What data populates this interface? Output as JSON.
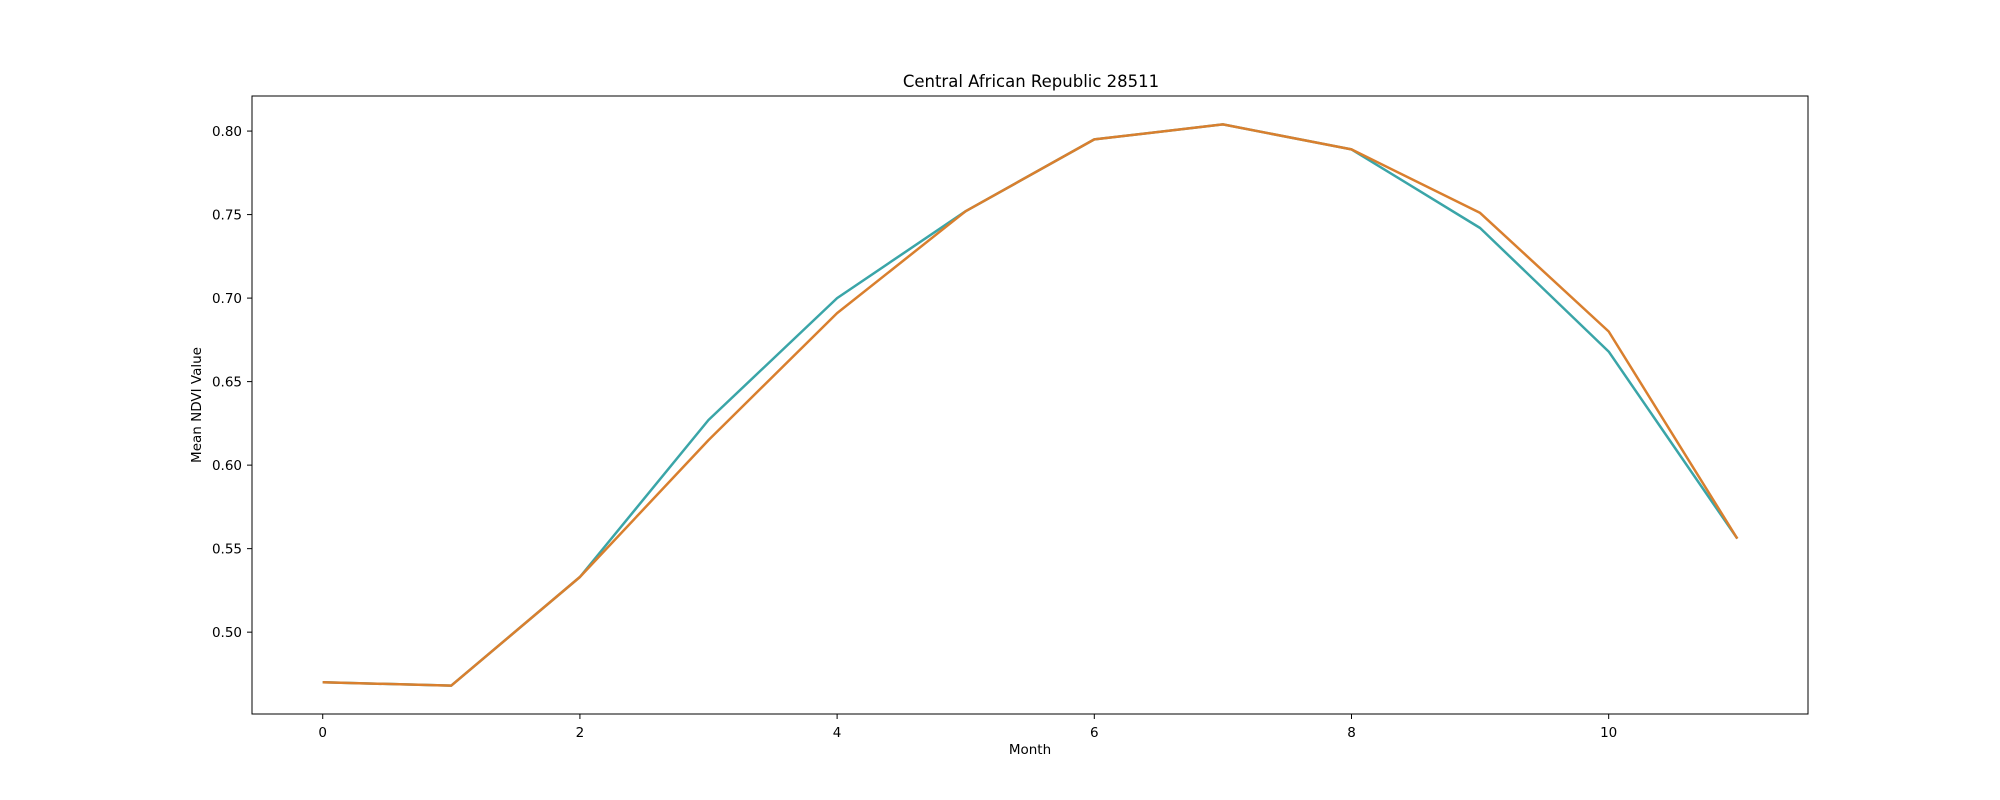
{
  "chart_data": {
    "type": "line",
    "title": "Central African Republic 28511",
    "xlabel": "Month",
    "ylabel": "Mean NDVI Value",
    "x": [
      0,
      1,
      2,
      3,
      4,
      5,
      6,
      7,
      8,
      9,
      10,
      11
    ],
    "xlim": [
      -0.55,
      11.55
    ],
    "ylim": [
      0.451,
      0.821
    ],
    "xticks": [
      0,
      2,
      4,
      6,
      8,
      10
    ],
    "yticks": [
      0.5,
      0.55,
      0.6,
      0.65,
      0.7,
      0.75,
      0.8
    ],
    "grid": false,
    "legend": "none",
    "series": [
      {
        "color": "#3aa5a8",
        "values": [
          0.47,
          0.468,
          0.533,
          0.627,
          0.7,
          0.752,
          0.795,
          0.804,
          0.789,
          0.742,
          0.668,
          0.556
        ]
      },
      {
        "color": "#d97f2e",
        "values": [
          0.47,
          0.468,
          0.533,
          0.615,
          0.691,
          0.752,
          0.795,
          0.804,
          0.789,
          0.751,
          0.68,
          0.556
        ]
      }
    ]
  }
}
